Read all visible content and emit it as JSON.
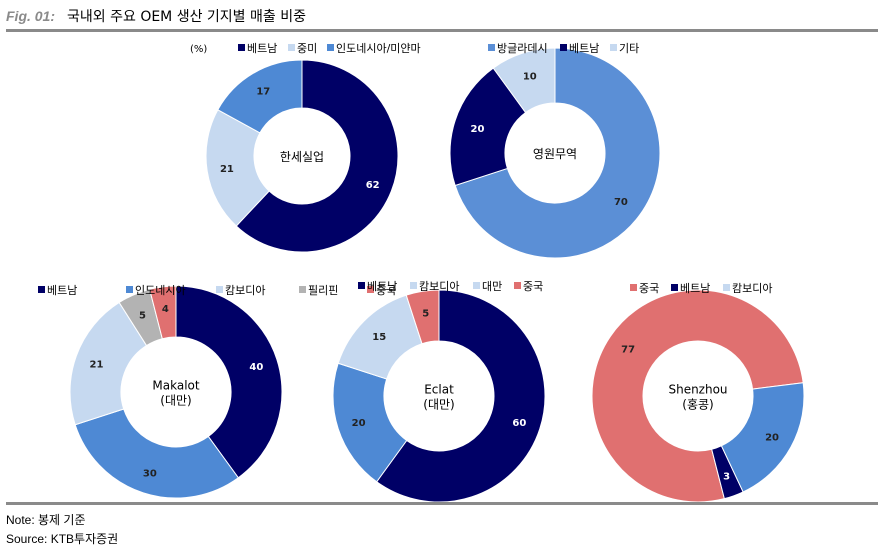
{
  "figure": {
    "label": "Fig. 01:",
    "title": "국내외 주요 OEM 생산 기지별 매출 비중",
    "note": "Note: 봉제 기준",
    "source": "Source: KTB투자증권"
  },
  "colors": {
    "베트남": "#000066",
    "중미": "#c6d9f0",
    "인도네시아/미얀마": "#4e89d4",
    "방글라데시": "#5b8fd6",
    "기타": "#c6d9f0",
    "인도네시아": "#4e89d4",
    "캄보디아": "#c6d9f0",
    "필리핀": "#b3b3b3",
    "중국": "#e07070",
    "대만": "#c6d9f0"
  },
  "chart_data": [
    {
      "type": "pie",
      "center_label": [
        "한세실업"
      ],
      "unit_label": "(%)",
      "legend": [
        "베트남",
        "중미",
        "인도네시아/미얀마"
      ],
      "slices": [
        {
          "label": "베트남",
          "value": 62,
          "color": "#000066"
        },
        {
          "label": "중미",
          "value": 21,
          "color": "#c6d9f0"
        },
        {
          "label": "인도네시아/미얀마",
          "value": 17,
          "color": "#4e89d4"
        }
      ]
    },
    {
      "type": "pie",
      "center_label": [
        "영원무역"
      ],
      "legend": [
        "방글라데시",
        "베트남",
        "기타"
      ],
      "slices": [
        {
          "label": "방글라데시",
          "value": 70,
          "color": "#5b8fd6"
        },
        {
          "label": "베트남",
          "value": 20,
          "color": "#000066"
        },
        {
          "label": "기타",
          "value": 10,
          "color": "#c6d9f0"
        }
      ]
    },
    {
      "type": "pie",
      "center_label": [
        "Makalot",
        "(대만)"
      ],
      "legend": [
        "베트남",
        "인도네시아",
        "캄보디아",
        "필리핀",
        "중국"
      ],
      "slices": [
        {
          "label": "베트남",
          "value": 40,
          "color": "#000066"
        },
        {
          "label": "인도네시아",
          "value": 30,
          "color": "#4e89d4"
        },
        {
          "label": "캄보디아",
          "value": 21,
          "color": "#c6d9f0"
        },
        {
          "label": "필리핀",
          "value": 5,
          "color": "#b3b3b3"
        },
        {
          "label": "중국",
          "value": 4,
          "color": "#e07070"
        }
      ]
    },
    {
      "type": "pie",
      "center_label": [
        "Eclat",
        "(대만)"
      ],
      "legend": [
        "베트남",
        "캄보디아",
        "대만",
        "중국"
      ],
      "slices": [
        {
          "label": "베트남",
          "value": 60,
          "color": "#000066"
        },
        {
          "label": "캄보디아",
          "value": 20,
          "color": "#4e89d4"
        },
        {
          "label": "대만",
          "value": 15,
          "color": "#c6d9f0"
        },
        {
          "label": "중국",
          "value": 5,
          "color": "#e07070"
        }
      ]
    },
    {
      "type": "pie",
      "center_label": [
        "Shenzhou",
        "(홍콩)"
      ],
      "legend": [
        "중국",
        "베트남",
        "캄보디아"
      ],
      "slices": [
        {
          "label": "중국",
          "value": 77,
          "color": "#e07070"
        },
        {
          "label": "베트남",
          "value": 3,
          "color": "#000066"
        },
        {
          "label": "캄보디아",
          "value": 20,
          "color": "#4e89d4"
        }
      ]
    }
  ]
}
